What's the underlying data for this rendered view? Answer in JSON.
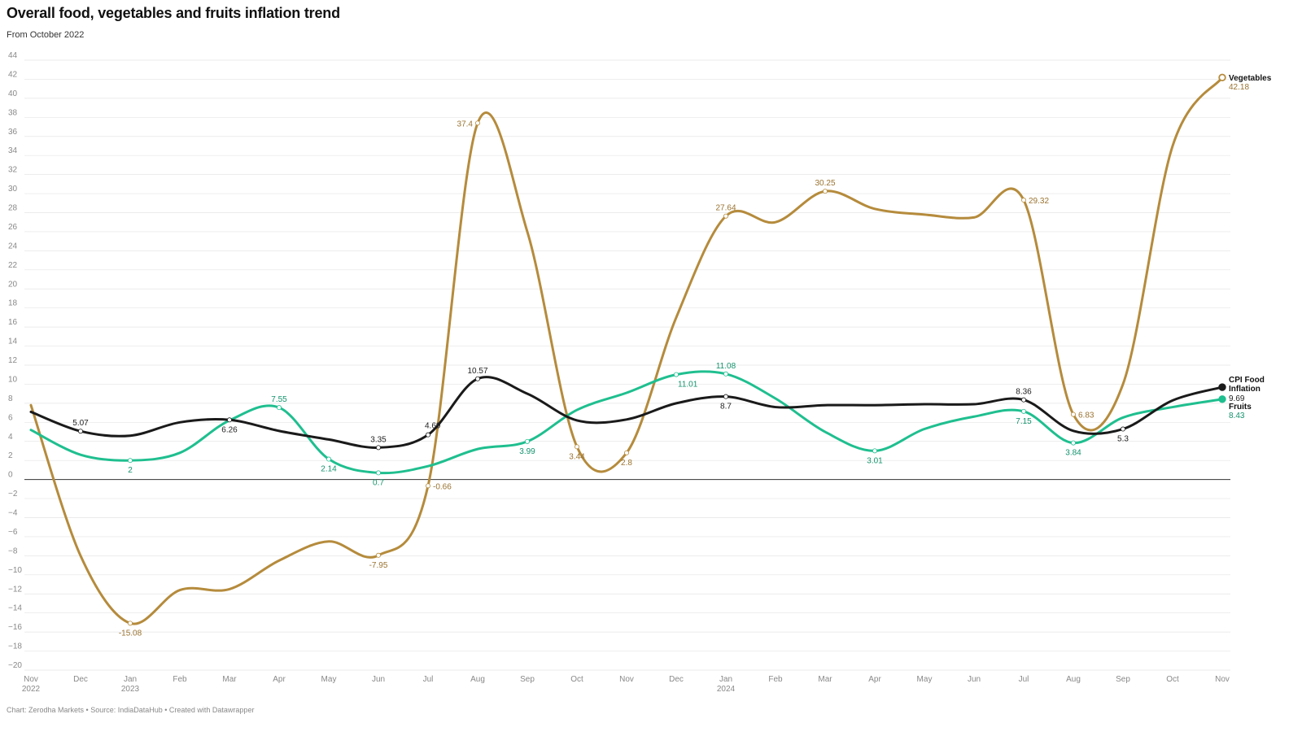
{
  "header": {
    "title": "Overall food, vegetables and fruits inflation trend",
    "subtitle": "From October 2022"
  },
  "footer": {
    "credit": "Chart: Zerodha Markets • Source: IndiaDataHub • Created with Datawrapper"
  },
  "colors": {
    "food": "#1a1a1a",
    "vegetables": "#b58b3c",
    "fruits": "#1fbf8f",
    "grid": "#e5e5e5",
    "zero": "#333333"
  },
  "chart_data": {
    "type": "line",
    "ylim": [
      -20,
      44
    ],
    "yticks": [
      -20,
      -18,
      -16,
      -14,
      -12,
      -10,
      -8,
      -6,
      -4,
      -2,
      0,
      2,
      4,
      6,
      8,
      10,
      12,
      14,
      16,
      18,
      20,
      22,
      24,
      26,
      28,
      30,
      32,
      34,
      36,
      38,
      40,
      42,
      44
    ],
    "xticks": [
      {
        "label": "Nov",
        "year": "2022"
      },
      {
        "label": "Dec",
        "year": ""
      },
      {
        "label": "Jan",
        "year": "2023"
      },
      {
        "label": "Feb",
        "year": ""
      },
      {
        "label": "Mar",
        "year": ""
      },
      {
        "label": "Apr",
        "year": ""
      },
      {
        "label": "May",
        "year": ""
      },
      {
        "label": "Jun",
        "year": ""
      },
      {
        "label": "Jul",
        "year": ""
      },
      {
        "label": "Aug",
        "year": ""
      },
      {
        "label": "Sep",
        "year": ""
      },
      {
        "label": "Oct",
        "year": ""
      },
      {
        "label": "Nov",
        "year": ""
      },
      {
        "label": "Dec",
        "year": ""
      },
      {
        "label": "Jan",
        "year": "2024"
      },
      {
        "label": "Feb",
        "year": ""
      },
      {
        "label": "Mar",
        "year": ""
      },
      {
        "label": "Apr",
        "year": ""
      },
      {
        "label": "May",
        "year": ""
      },
      {
        "label": "Jun",
        "year": ""
      },
      {
        "label": "Jul",
        "year": ""
      },
      {
        "label": "Aug",
        "year": ""
      },
      {
        "label": "Sep",
        "year": ""
      },
      {
        "label": "Oct",
        "year": ""
      },
      {
        "label": "Nov",
        "year": ""
      }
    ],
    "series": [
      {
        "name": "Vegetables",
        "key": "vegetables",
        "values": [
          7.8,
          -8.0,
          -15.08,
          -11.6,
          -11.5,
          -8.5,
          -6.5,
          -7.95,
          -0.66,
          37.4,
          26.0,
          3.44,
          2.8,
          17.0,
          27.64,
          27.0,
          30.25,
          28.4,
          27.8,
          27.5,
          29.32,
          6.83,
          10.0,
          35.0,
          42.18
        ],
        "labels": [
          {
            "i": 2,
            "text": "-15.08",
            "pos": "below"
          },
          {
            "i": 7,
            "text": "-7.95",
            "pos": "below"
          },
          {
            "i": 8,
            "text": "-0.66",
            "pos": "right"
          },
          {
            "i": 9,
            "text": "37.4",
            "pos": "left"
          },
          {
            "i": 11,
            "text": "3.44",
            "pos": "below"
          },
          {
            "i": 12,
            "text": "2.8",
            "pos": "below"
          },
          {
            "i": 14,
            "text": "27.64",
            "pos": "above"
          },
          {
            "i": 16,
            "text": "30.25",
            "pos": "above"
          },
          {
            "i": 20,
            "text": "29.32",
            "pos": "right"
          },
          {
            "i": 21,
            "text": "6.83",
            "pos": "right"
          }
        ],
        "end_label": "42.18"
      },
      {
        "name": "CPI Food Inflation",
        "key": "food",
        "values": [
          7.1,
          5.07,
          4.6,
          6.0,
          6.26,
          5.1,
          4.2,
          3.35,
          4.69,
          10.57,
          9.0,
          6.2,
          6.3,
          8.0,
          8.7,
          7.6,
          7.8,
          7.8,
          7.9,
          7.9,
          8.36,
          5.1,
          5.3,
          8.3,
          9.69
        ],
        "labels": [
          {
            "i": 1,
            "text": "5.07",
            "pos": "above"
          },
          {
            "i": 4,
            "text": "6.26",
            "pos": "below"
          },
          {
            "i": 7,
            "text": "3.35",
            "pos": "above"
          },
          {
            "i": 8,
            "text": "4.69",
            "pos": "above-left"
          },
          {
            "i": 9,
            "text": "10.57",
            "pos": "above"
          },
          {
            "i": 14,
            "text": "8.7",
            "pos": "below"
          },
          {
            "i": 20,
            "text": "8.36",
            "pos": "above"
          },
          {
            "i": 22,
            "text": "5.3",
            "pos": "below"
          }
        ],
        "end_label": "9.69"
      },
      {
        "name": "Fruits",
        "key": "fruits",
        "values": [
          5.2,
          2.6,
          2.0,
          2.8,
          6.2,
          7.55,
          2.14,
          0.7,
          1.4,
          3.2,
          3.99,
          7.3,
          9.1,
          11.01,
          11.08,
          8.5,
          5.0,
          3.01,
          5.3,
          6.6,
          7.15,
          3.84,
          6.5,
          7.6,
          8.43
        ],
        "labels": [
          {
            "i": 2,
            "text": "2",
            "pos": "below"
          },
          {
            "i": 5,
            "text": "7.55",
            "pos": "above"
          },
          {
            "i": 6,
            "text": "2.14",
            "pos": "below"
          },
          {
            "i": 7,
            "text": "0.7",
            "pos": "below"
          },
          {
            "i": 10,
            "text": "3.99",
            "pos": "below"
          },
          {
            "i": 13,
            "text": "11.01",
            "pos": "below-right"
          },
          {
            "i": 14,
            "text": "11.08",
            "pos": "above"
          },
          {
            "i": 17,
            "text": "3.01",
            "pos": "below"
          },
          {
            "i": 20,
            "text": "7.15",
            "pos": "below"
          },
          {
            "i": 21,
            "text": "3.84",
            "pos": "below"
          }
        ],
        "end_label": "8.43"
      }
    ]
  }
}
